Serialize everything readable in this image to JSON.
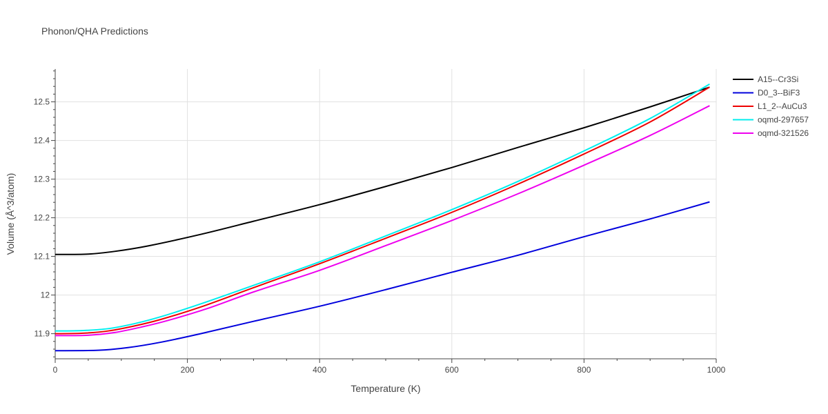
{
  "chart_data": {
    "type": "line",
    "title": "Phonon/QHA Predictions",
    "xlabel": "Temperature (K)",
    "ylabel": "Volume (Å^3/atom)",
    "xlim": [
      0,
      1000
    ],
    "ylim": [
      11.835,
      12.585
    ],
    "xticks": [
      0,
      200,
      400,
      600,
      800,
      1000
    ],
    "xtick_labels": [
      "0",
      "200",
      "400",
      "600",
      "800",
      "1000"
    ],
    "yticks": [
      11.9,
      12.0,
      12.1,
      12.2,
      12.3,
      12.4,
      12.5
    ],
    "ytick_labels": [
      "11.9",
      "12",
      "12.1",
      "12.2",
      "12.3",
      "12.4",
      "12.5"
    ],
    "grid": true,
    "legend_position": "top-right",
    "series": [
      {
        "name": "A15--Cr3Si",
        "color": "#000000",
        "x": [
          0,
          50,
          90,
          140,
          220,
          300,
          400,
          500,
          600,
          700,
          800,
          900,
          990
        ],
        "y": [
          12.105,
          12.106,
          12.113,
          12.127,
          12.157,
          12.191,
          12.234,
          12.281,
          12.33,
          12.382,
          12.433,
          12.487,
          12.538
        ]
      },
      {
        "name": "D0_3--BiF3",
        "color": "#0000dd",
        "x": [
          0,
          65,
          110,
          160,
          220,
          300,
          400,
          500,
          600,
          700,
          800,
          900,
          990
        ],
        "y": [
          11.856,
          11.857,
          11.864,
          11.878,
          11.9,
          11.932,
          11.971,
          12.014,
          12.059,
          12.103,
          12.151,
          12.197,
          12.241
        ]
      },
      {
        "name": "L1_2--AuCu3",
        "color": "#ee0000",
        "x": [
          0,
          40,
          80,
          120,
          160,
          220,
          300,
          400,
          500,
          600,
          700,
          800,
          900,
          990
        ],
        "y": [
          11.9,
          11.901,
          11.907,
          11.92,
          11.937,
          11.969,
          12.019,
          12.081,
          12.147,
          12.214,
          12.287,
          12.365,
          12.448,
          12.538
        ]
      },
      {
        "name": "oqmd-297657",
        "color": "#00eeee",
        "x": [
          0,
          40,
          80,
          120,
          160,
          220,
          300,
          400,
          500,
          600,
          700,
          800,
          900,
          990
        ],
        "y": [
          11.907,
          11.908,
          11.913,
          11.926,
          11.944,
          11.977,
          12.025,
          12.086,
          12.153,
          12.221,
          12.294,
          12.373,
          12.457,
          12.546
        ]
      },
      {
        "name": "oqmd-321526",
        "color": "#ee00ee",
        "x": [
          0,
          50,
          90,
          130,
          170,
          230,
          300,
          400,
          500,
          600,
          700,
          800,
          900,
          990
        ],
        "y": [
          11.895,
          11.896,
          11.903,
          11.917,
          11.934,
          11.965,
          12.008,
          12.064,
          12.128,
          12.193,
          12.262,
          12.336,
          12.413,
          12.49
        ]
      }
    ]
  }
}
